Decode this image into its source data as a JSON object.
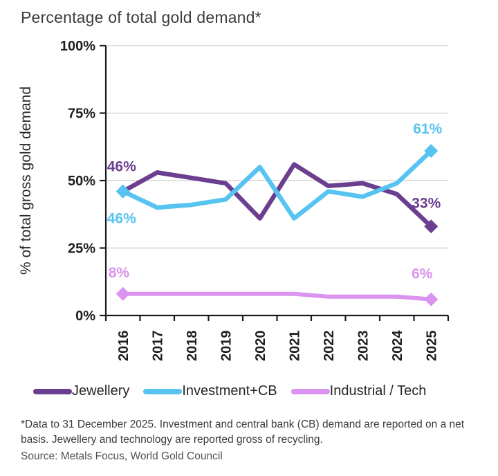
{
  "title": "Percentage of total gold demand*",
  "footnote": "*Data to 31 December 2025. Investment and central bank (CB) demand are reported on a net basis. Jewellery and technology are reported gross of recycling.",
  "source": "Source: Metals Focus, World Gold Council",
  "chart_data": {
    "type": "line",
    "title": "Percentage of total gold demand*",
    "xlabel": "",
    "ylabel": "% of total gross gold demand",
    "ylim": [
      0,
      100
    ],
    "yticks": [
      0,
      25,
      50,
      75,
      100
    ],
    "ytick_labels": [
      "0%",
      "25%",
      "50%",
      "75%",
      "100%"
    ],
    "grid": "horizontal",
    "legend_position": "bottom",
    "categories": [
      "2016",
      "2017",
      "2018",
      "2019",
      "2020",
      "2021",
      "2022",
      "2023",
      "2024",
      "2025"
    ],
    "series": [
      {
        "name": "Jewellery",
        "color": "#6B3E8F",
        "values": [
          46,
          53,
          51,
          49,
          36,
          56,
          48,
          49,
          45,
          33
        ],
        "endpoint_labels": {
          "first": "46%",
          "last": "33%"
        }
      },
      {
        "name": "Investment+CB",
        "color": "#57C3F0",
        "values": [
          46,
          40,
          41,
          43,
          55,
          36,
          46,
          44,
          49,
          61
        ],
        "endpoint_labels": {
          "first": "46%",
          "last": "61%"
        }
      },
      {
        "name": "Industrial / Tech",
        "color": "#DA93EE",
        "values": [
          8,
          8,
          8,
          8,
          8,
          8,
          7,
          7,
          7,
          6
        ],
        "endpoint_labels": {
          "first": "8%",
          "last": "6%"
        }
      }
    ]
  },
  "style": {
    "axis_color": "#1a1a1a",
    "grid_color": "#d6d6d6"
  }
}
